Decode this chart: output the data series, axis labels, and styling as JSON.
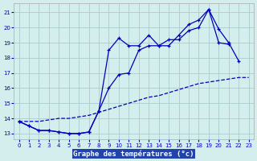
{
  "title": "Graphe des températures (°c)",
  "bg_color": "#d4eeee",
  "grid_color": "#aacccc",
  "line_color": "#0000bb",
  "xlim": [
    -0.5,
    23.5
  ],
  "ylim": [
    12.6,
    21.6
  ],
  "xticks": [
    0,
    1,
    2,
    3,
    4,
    5,
    6,
    7,
    8,
    9,
    10,
    11,
    12,
    13,
    14,
    15,
    16,
    17,
    18,
    19,
    20,
    21,
    22,
    23
  ],
  "yticks": [
    13,
    14,
    15,
    16,
    17,
    18,
    19,
    20,
    21
  ],
  "line1_x": [
    0,
    1,
    2,
    3,
    4,
    5,
    6,
    7,
    8,
    9,
    10,
    11,
    12,
    13,
    14,
    15,
    16,
    17,
    18,
    19,
    20,
    21,
    22,
    23
  ],
  "line1_y": [
    13.8,
    13.5,
    13.2,
    13.2,
    13.1,
    13.0,
    13.0,
    13.1,
    14.5,
    16.0,
    16.9,
    17.0,
    18.5,
    18.8,
    18.8,
    19.2,
    19.2,
    19.8,
    20.0,
    21.2,
    19.0,
    18.9,
    null,
    null
  ],
  "line2_x": [
    0,
    1,
    2,
    3,
    4,
    5,
    6,
    7,
    8,
    9,
    10,
    11,
    12,
    13,
    14,
    15,
    16,
    17,
    18,
    19,
    20,
    21,
    22,
    23
  ],
  "line2_y": [
    13.8,
    13.5,
    13.2,
    13.2,
    13.1,
    13.0,
    13.0,
    13.1,
    14.5,
    18.5,
    19.3,
    18.8,
    18.8,
    19.5,
    18.8,
    18.8,
    19.5,
    20.2,
    20.5,
    21.2,
    19.9,
    19.0,
    17.8,
    null
  ],
  "line3_x": [
    0,
    1,
    2,
    3,
    4,
    5,
    6,
    7,
    8,
    9,
    10,
    11,
    12,
    13,
    14,
    15,
    16,
    17,
    18,
    19,
    20,
    21,
    22,
    23
  ],
  "line3_y": [
    13.8,
    13.8,
    13.8,
    13.9,
    14.0,
    14.0,
    14.1,
    14.2,
    14.4,
    14.6,
    14.8,
    15.0,
    15.2,
    15.4,
    15.5,
    15.7,
    15.9,
    16.1,
    16.3,
    16.4,
    16.5,
    16.6,
    16.7,
    16.7
  ]
}
